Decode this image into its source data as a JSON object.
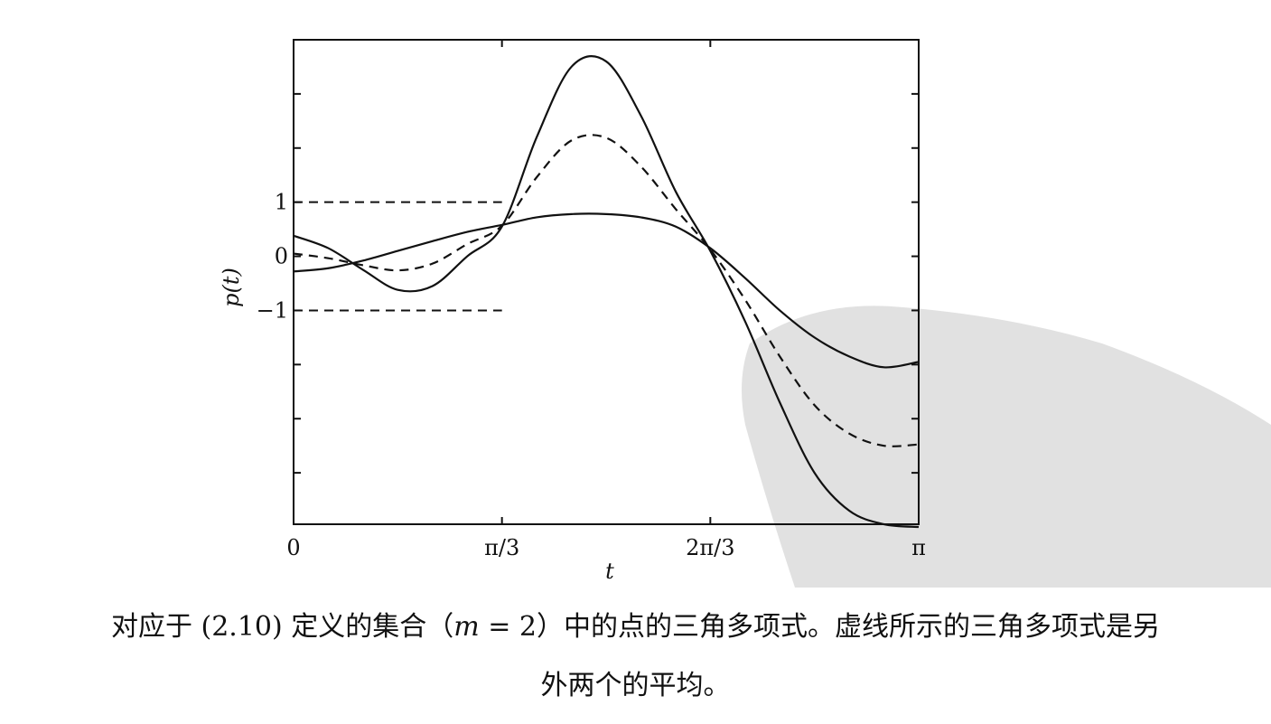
{
  "chart_data": {
    "type": "line",
    "title": "",
    "xlabel": "t",
    "ylabel": "p(t)",
    "xlim": [
      0,
      3.14159
    ],
    "ylim": [
      -4.95,
      4
    ],
    "x_ticks": [
      {
        "value": 0,
        "label": "0"
      },
      {
        "value": 1.0472,
        "label": "π/3"
      },
      {
        "value": 2.0944,
        "label": "2π/3"
      },
      {
        "value": 3.14159,
        "label": "π"
      }
    ],
    "y_ticks": [
      {
        "value": 1,
        "label": "1"
      },
      {
        "value": 0,
        "label": "0"
      },
      {
        "value": -1,
        "label": "−1"
      }
    ],
    "y_minor_ticks": [
      4,
      3,
      2,
      -2,
      -3,
      -4
    ],
    "reference_lines": [
      {
        "y": 1,
        "x_range": [
          0,
          1.0472
        ],
        "style": "dashed"
      },
      {
        "y": -1,
        "x_range": [
          0,
          1.0472
        ],
        "style": "dashed"
      }
    ],
    "x": [
      0,
      0.1745,
      0.3491,
      0.5236,
      0.6981,
      0.8727,
      1.0472,
      1.2217,
      1.3963,
      1.5708,
      1.7453,
      1.9199,
      2.0944,
      2.2689,
      2.4435,
      2.618,
      2.7925,
      2.967,
      3.1416
    ],
    "series": [
      {
        "style": "solid",
        "values": [
          0.38,
          0.15,
          -0.25,
          -0.62,
          -0.55,
          0.0,
          0.55,
          2.2,
          3.5,
          3.6,
          2.6,
          1.2,
          0.1,
          -1.2,
          -2.7,
          -4.0,
          -4.7,
          -4.95,
          -5.0
        ]
      },
      {
        "style": "solid",
        "values": [
          -0.28,
          -0.22,
          -0.08,
          0.1,
          0.28,
          0.45,
          0.58,
          0.72,
          0.78,
          0.78,
          0.72,
          0.55,
          0.15,
          -0.4,
          -1.0,
          -1.5,
          -1.85,
          -2.05,
          -1.95
        ]
      },
      {
        "style": "dashed",
        "values": [
          0.05,
          -0.035,
          -0.165,
          -0.26,
          -0.135,
          0.225,
          0.565,
          1.46,
          2.14,
          2.19,
          1.66,
          0.875,
          0.125,
          -0.8,
          -1.85,
          -2.75,
          -3.275,
          -3.5,
          -3.475
        ]
      }
    ]
  },
  "caption": {
    "line1_text_a": "对应于 (2.10) 定义的集合（",
    "line1_math": "m",
    "line1_text_b": " = 2）中的点的三角多项式。虚线所示的三角多项式是另",
    "line2": "外两个的平均。"
  }
}
